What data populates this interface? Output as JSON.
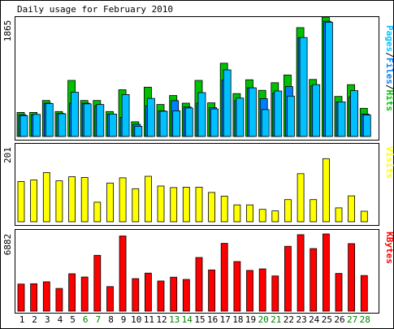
{
  "chart_data": {
    "type": "bar",
    "title": "Daily usage for February 2010",
    "days": [
      "1",
      "2",
      "3",
      "4",
      "5",
      "6",
      "7",
      "8",
      "9",
      "10",
      "11",
      "12",
      "13",
      "14",
      "15",
      "16",
      "17",
      "18",
      "19",
      "20",
      "21",
      "22",
      "23",
      "24",
      "25",
      "26",
      "27",
      "28"
    ],
    "weekend_days": [
      "6",
      "7",
      "13",
      "14",
      "20",
      "21",
      "27",
      "28"
    ],
    "colors": {
      "hits": "#00c000",
      "files": "#0080ff",
      "pages": "#00c0ff",
      "visits": "#ffff00",
      "kbytes": "#ff0000",
      "weekday_label": "#000000",
      "weekend_label": "#008000"
    },
    "top_panel": {
      "max_label": "1865",
      "ylim": [
        0,
        1865
      ],
      "legend": [
        {
          "text": "Pages",
          "color": "#00c0ff"
        },
        {
          "text": "/",
          "color": "#000000"
        },
        {
          "text": "Files",
          "color": "#0080ff"
        },
        {
          "text": "/",
          "color": "#000000"
        },
        {
          "text": "Hits",
          "color": "#00c000"
        }
      ],
      "series": [
        {
          "name": "Hits",
          "values": [
            375,
            375,
            562,
            390,
            875,
            562,
            562,
            390,
            730,
            230,
            770,
            500,
            640,
            520,
            875,
            525,
            1145,
            670,
            885,
            720,
            840,
            960,
            1700,
            890,
            1865,
            625,
            810,
            440
          ]
        },
        {
          "name": "Files",
          "values": [
            340,
            340,
            520,
            360,
            520,
            520,
            480,
            350,
            300,
            190,
            480,
            400,
            560,
            460,
            520,
            450,
            880,
            560,
            760,
            590,
            680,
            780,
            1540,
            790,
            1800,
            540,
            620,
            350
          ]
        },
        {
          "name": "Pages",
          "values": [
            325,
            345,
            515,
            355,
            690,
            510,
            500,
            350,
            655,
            160,
            595,
            395,
            400,
            445,
            685,
            430,
            1040,
            600,
            760,
            420,
            710,
            630,
            1545,
            810,
            1785,
            540,
            715,
            335
          ]
        }
      ]
    },
    "mid_panel": {
      "max_label": "201",
      "ylim": [
        0,
        201
      ],
      "legend": [
        {
          "text": "Visits",
          "color": "#ffff00"
        }
      ],
      "series": [
        {
          "name": "Visits",
          "values": [
            107,
            111,
            131,
            109,
            120,
            118,
            52,
            103,
            117,
            88,
            121,
            95,
            91,
            92,
            92,
            78,
            68,
            45,
            45,
            33,
            29,
            59,
            128,
            59,
            168,
            37,
            69,
            28
          ]
        }
      ]
    },
    "bot_panel": {
      "max_label": "6882",
      "ylim": [
        0,
        6882
      ],
      "legend": [
        {
          "text": "KBytes",
          "color": "#ff0000"
        }
      ],
      "series": [
        {
          "name": "KBytes",
          "values": [
            2415,
            2440,
            2615,
            2020,
            3335,
            3040,
            4980,
            2185,
            6700,
            2900,
            3390,
            2690,
            3030,
            2825,
            4780,
            3670,
            6040,
            4420,
            3630,
            3770,
            3140,
            5780,
            6820,
            5580,
            6882,
            3360,
            6020,
            3170
          ]
        }
      ]
    }
  }
}
